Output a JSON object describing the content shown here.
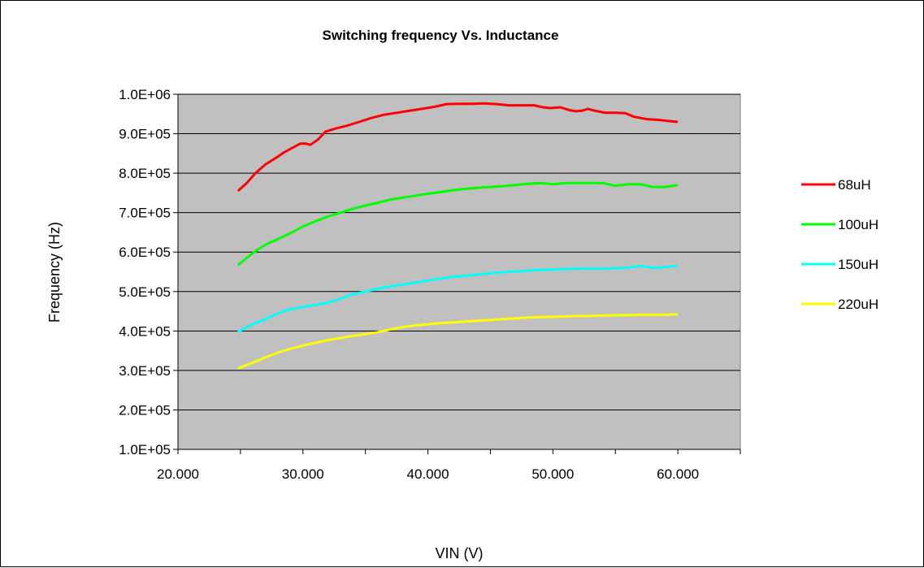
{
  "chart_data": {
    "type": "line",
    "title": "Switching frequency Vs. Inductance",
    "xlabel": "VIN (V)",
    "ylabel": "Frequency (Hz)",
    "xlim": [
      20,
      65
    ],
    "ylim": [
      100000,
      1000000
    ],
    "x_ticks": [
      20,
      30,
      40,
      50,
      60
    ],
    "x_tick_labels": [
      "20.000",
      "30.000",
      "40.000",
      "50.000",
      "60.000"
    ],
    "y_ticks": [
      100000,
      200000,
      300000,
      400000,
      500000,
      600000,
      700000,
      800000,
      900000,
      1000000
    ],
    "y_tick_labels": [
      "1.0E+05",
      "2.0E+05",
      "3.0E+05",
      "4.0E+05",
      "5.0E+05",
      "6.0E+05",
      "7.0E+05",
      "8.0E+05",
      "9.0E+05",
      "1.0E+06"
    ],
    "grid": "horizontal",
    "plot_background": "#c0c0c0",
    "legend_position": "right",
    "series": [
      {
        "name": "68uH",
        "color": "#ff0000",
        "points": [
          [
            24.8,
            755000
          ],
          [
            25.5,
            775000
          ],
          [
            26.2,
            800000
          ],
          [
            27,
            822000
          ],
          [
            27.8,
            838000
          ],
          [
            28.5,
            853000
          ],
          [
            29.2,
            865000
          ],
          [
            29.8,
            875000
          ],
          [
            30.2,
            875000
          ],
          [
            30.6,
            872000
          ],
          [
            31.2,
            885000
          ],
          [
            31.8,
            905000
          ],
          [
            32.6,
            913000
          ],
          [
            33.5,
            920000
          ],
          [
            34.5,
            930000
          ],
          [
            35.5,
            940000
          ],
          [
            36.5,
            948000
          ],
          [
            37.5,
            953000
          ],
          [
            38.5,
            958000
          ],
          [
            39.5,
            963000
          ],
          [
            40.5,
            968000
          ],
          [
            41.5,
            975000
          ],
          [
            42.5,
            976000
          ],
          [
            43.5,
            976000
          ],
          [
            44.5,
            977000
          ],
          [
            45.5,
            975000
          ],
          [
            46.5,
            972000
          ],
          [
            47.5,
            972000
          ],
          [
            48.5,
            972000
          ],
          [
            49.2,
            967000
          ],
          [
            49.8,
            965000
          ],
          [
            50.6,
            967000
          ],
          [
            51.3,
            960000
          ],
          [
            51.8,
            957000
          ],
          [
            52.3,
            958000
          ],
          [
            52.8,
            963000
          ],
          [
            53.4,
            958000
          ],
          [
            54.2,
            953000
          ],
          [
            55,
            953000
          ],
          [
            55.8,
            952000
          ],
          [
            56.5,
            943000
          ],
          [
            57.5,
            937000
          ],
          [
            58.5,
            935000
          ],
          [
            59.3,
            932000
          ],
          [
            60,
            930000
          ]
        ]
      },
      {
        "name": "100uH",
        "color": "#00ff00",
        "points": [
          [
            24.8,
            567000
          ],
          [
            25.5,
            585000
          ],
          [
            26.3,
            605000
          ],
          [
            27.2,
            622000
          ],
          [
            28,
            633000
          ],
          [
            29,
            648000
          ],
          [
            30,
            665000
          ],
          [
            31,
            678000
          ],
          [
            32,
            690000
          ],
          [
            33,
            700000
          ],
          [
            34,
            710000
          ],
          [
            35,
            718000
          ],
          [
            36,
            725000
          ],
          [
            37,
            733000
          ],
          [
            38,
            738000
          ],
          [
            39,
            743000
          ],
          [
            40,
            748000
          ],
          [
            41,
            752000
          ],
          [
            42,
            757000
          ],
          [
            43,
            760000
          ],
          [
            44,
            763000
          ],
          [
            45,
            765000
          ],
          [
            46,
            767000
          ],
          [
            47,
            770000
          ],
          [
            48,
            773000
          ],
          [
            49,
            775000
          ],
          [
            50,
            772000
          ],
          [
            51,
            775000
          ],
          [
            52,
            775000
          ],
          [
            53,
            775000
          ],
          [
            54,
            775000
          ],
          [
            55,
            768000
          ],
          [
            56,
            772000
          ],
          [
            57,
            772000
          ],
          [
            58,
            765000
          ],
          [
            59,
            765000
          ],
          [
            60,
            770000
          ]
        ]
      },
      {
        "name": "150uH",
        "color": "#00ffff",
        "points": [
          [
            24.8,
            398000
          ],
          [
            25.8,
            415000
          ],
          [
            27,
            430000
          ],
          [
            28,
            445000
          ],
          [
            29,
            455000
          ],
          [
            30,
            461000
          ],
          [
            31,
            466000
          ],
          [
            32,
            472000
          ],
          [
            33,
            482000
          ],
          [
            34,
            493000
          ],
          [
            35,
            500000
          ],
          [
            36,
            507000
          ],
          [
            37,
            513000
          ],
          [
            38,
            518000
          ],
          [
            39,
            523000
          ],
          [
            40,
            528000
          ],
          [
            41,
            533000
          ],
          [
            42,
            537000
          ],
          [
            43,
            540000
          ],
          [
            44,
            543000
          ],
          [
            45,
            546000
          ],
          [
            46,
            549000
          ],
          [
            47,
            551000
          ],
          [
            48,
            553000
          ],
          [
            49,
            555000
          ],
          [
            50,
            556000
          ],
          [
            51,
            557000
          ],
          [
            52,
            558000
          ],
          [
            53,
            558000
          ],
          [
            54,
            558000
          ],
          [
            55,
            559000
          ],
          [
            56,
            561000
          ],
          [
            57,
            565000
          ],
          [
            58,
            560000
          ],
          [
            59,
            562000
          ],
          [
            60,
            565000
          ]
        ]
      },
      {
        "name": "220uH",
        "color": "#ffff00",
        "points": [
          [
            24.8,
            305000
          ],
          [
            26,
            320000
          ],
          [
            27,
            333000
          ],
          [
            28,
            345000
          ],
          [
            29,
            355000
          ],
          [
            30,
            363000
          ],
          [
            31,
            370000
          ],
          [
            32,
            377000
          ],
          [
            33,
            382000
          ],
          [
            34,
            388000
          ],
          [
            35,
            392000
          ],
          [
            36,
            397000
          ],
          [
            37,
            404000
          ],
          [
            38,
            410000
          ],
          [
            39,
            414000
          ],
          [
            40,
            417000
          ],
          [
            41,
            420000
          ],
          [
            42,
            422000
          ],
          [
            43,
            424000
          ],
          [
            44,
            426000
          ],
          [
            45,
            428000
          ],
          [
            46,
            430000
          ],
          [
            47,
            432000
          ],
          [
            48,
            434000
          ],
          [
            49,
            435000
          ],
          [
            50,
            436000
          ],
          [
            51,
            437000
          ],
          [
            52,
            438000
          ],
          [
            53,
            438000
          ],
          [
            54,
            439000
          ],
          [
            55,
            440000
          ],
          [
            56,
            440000
          ],
          [
            57,
            441000
          ],
          [
            58,
            441000
          ],
          [
            59,
            441000
          ],
          [
            60,
            442000
          ]
        ]
      }
    ]
  }
}
